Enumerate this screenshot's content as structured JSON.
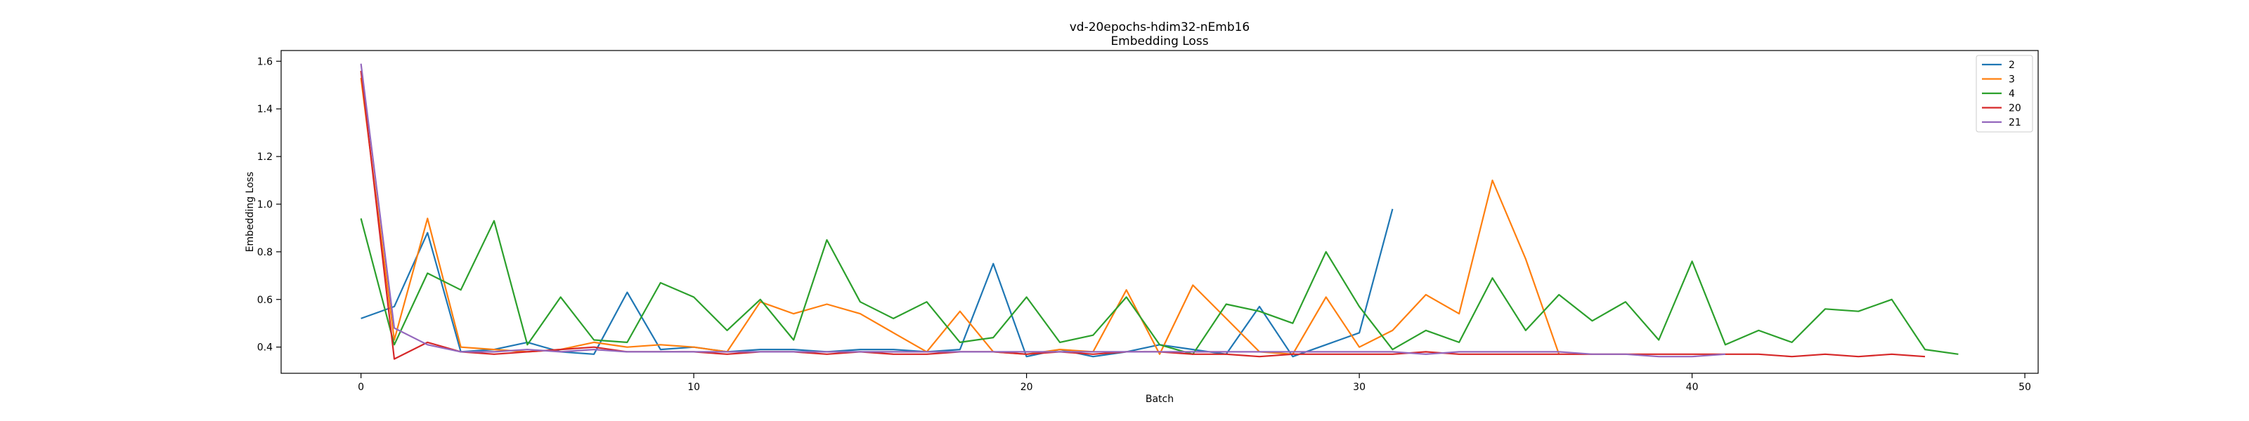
{
  "chart_data": {
    "type": "line",
    "title": "vd-20epochs-hdim32-nEmb16",
    "subtitle": "Embedding Loss",
    "xlabel": "Batch",
    "ylabel": "Embedding Loss",
    "xlim": [
      -2.4,
      50.4
    ],
    "ylim": [
      0.29,
      1.645
    ],
    "xticks": [
      0,
      10,
      20,
      30,
      40,
      50
    ],
    "yticks": [
      0.4,
      0.6,
      0.8,
      1.0,
      1.2,
      1.4,
      1.6
    ],
    "grid": false,
    "legend_position": "top-right",
    "series": [
      {
        "name": "2",
        "color": "#1f77b4",
        "x": [
          0,
          1,
          2,
          3,
          4,
          5,
          6,
          7,
          8,
          9,
          10,
          11,
          12,
          13,
          14,
          15,
          16,
          17,
          18,
          19,
          20,
          21,
          22,
          23,
          24,
          25,
          26,
          27,
          28,
          29,
          30,
          31
        ],
        "y": [
          0.52,
          0.57,
          0.88,
          0.38,
          0.39,
          0.42,
          0.38,
          0.37,
          0.63,
          0.39,
          0.4,
          0.38,
          0.39,
          0.39,
          0.38,
          0.39,
          0.39,
          0.38,
          0.39,
          0.75,
          0.36,
          0.39,
          0.36,
          0.38,
          0.41,
          0.39,
          0.37,
          0.57,
          0.36,
          0.41,
          0.46,
          0.98
        ]
      },
      {
        "name": "3",
        "color": "#ff7f0e",
        "x": [
          0,
          1,
          2,
          3,
          4,
          5,
          6,
          7,
          8,
          9,
          10,
          11,
          12,
          13,
          14,
          15,
          16,
          17,
          18,
          19,
          20,
          21,
          22,
          23,
          24,
          25,
          26,
          27,
          28,
          29,
          30,
          31,
          32,
          33,
          34,
          35,
          36
        ],
        "y": [
          1.53,
          0.43,
          0.94,
          0.4,
          0.39,
          0.38,
          0.39,
          0.42,
          0.4,
          0.41,
          0.4,
          0.38,
          0.59,
          0.54,
          0.58,
          0.54,
          0.46,
          0.38,
          0.55,
          0.38,
          0.37,
          0.39,
          0.38,
          0.64,
          0.37,
          0.66,
          0.52,
          0.38,
          0.37,
          0.61,
          0.4,
          0.47,
          0.62,
          0.54,
          1.1,
          0.77,
          0.37
        ]
      },
      {
        "name": "4",
        "color": "#2ca02c",
        "x": [
          0,
          1,
          2,
          3,
          4,
          5,
          6,
          7,
          8,
          9,
          10,
          11,
          12,
          13,
          14,
          15,
          16,
          17,
          18,
          19,
          20,
          21,
          22,
          23,
          24,
          25,
          26,
          27,
          28,
          29,
          30,
          31,
          32,
          33,
          34,
          35,
          36,
          37,
          38,
          39,
          40,
          41,
          42,
          43,
          44,
          45,
          46,
          47,
          48
        ],
        "y": [
          0.94,
          0.41,
          0.71,
          0.64,
          0.93,
          0.41,
          0.61,
          0.43,
          0.42,
          0.67,
          0.61,
          0.47,
          0.6,
          0.43,
          0.85,
          0.59,
          0.52,
          0.59,
          0.42,
          0.44,
          0.61,
          0.42,
          0.45,
          0.61,
          0.41,
          0.37,
          0.58,
          0.55,
          0.5,
          0.8,
          0.57,
          0.39,
          0.47,
          0.42,
          0.69,
          0.47,
          0.62,
          0.51,
          0.59,
          0.43,
          0.76,
          0.41,
          0.47,
          0.42,
          0.56,
          0.55,
          0.6,
          0.39,
          0.37
        ]
      },
      {
        "name": "20",
        "color": "#d62728",
        "x": [
          0,
          1,
          2,
          3,
          4,
          5,
          6,
          7,
          8,
          9,
          10,
          11,
          12,
          13,
          14,
          15,
          16,
          17,
          18,
          19,
          20,
          21,
          22,
          23,
          24,
          25,
          26,
          27,
          28,
          29,
          30,
          31,
          32,
          33,
          34,
          35,
          36,
          37,
          38,
          39,
          40,
          41,
          42,
          43,
          44,
          45,
          46,
          47
        ],
        "y": [
          1.56,
          0.35,
          0.42,
          0.38,
          0.37,
          0.38,
          0.39,
          0.4,
          0.38,
          0.38,
          0.38,
          0.37,
          0.38,
          0.38,
          0.37,
          0.38,
          0.37,
          0.37,
          0.38,
          0.38,
          0.37,
          0.38,
          0.37,
          0.38,
          0.38,
          0.37,
          0.37,
          0.36,
          0.37,
          0.37,
          0.37,
          0.37,
          0.38,
          0.37,
          0.37,
          0.37,
          0.37,
          0.37,
          0.37,
          0.37,
          0.37,
          0.37,
          0.37,
          0.36,
          0.37,
          0.36,
          0.37,
          0.36
        ]
      },
      {
        "name": "21",
        "color": "#9467bd",
        "x": [
          0,
          1,
          2,
          3,
          4,
          5,
          6,
          7,
          8,
          9,
          10,
          11,
          12,
          13,
          14,
          15,
          16,
          17,
          18,
          19,
          20,
          21,
          22,
          23,
          24,
          25,
          26,
          27,
          28,
          29,
          30,
          31,
          32,
          33,
          34,
          35,
          36,
          37,
          38,
          39,
          40,
          41
        ],
        "y": [
          1.59,
          0.48,
          0.41,
          0.38,
          0.38,
          0.39,
          0.38,
          0.39,
          0.38,
          0.38,
          0.38,
          0.38,
          0.38,
          0.38,
          0.38,
          0.38,
          0.38,
          0.38,
          0.38,
          0.38,
          0.38,
          0.38,
          0.38,
          0.38,
          0.38,
          0.38,
          0.38,
          0.38,
          0.38,
          0.38,
          0.38,
          0.38,
          0.37,
          0.38,
          0.38,
          0.38,
          0.38,
          0.37,
          0.37,
          0.36,
          0.36,
          0.37
        ]
      }
    ]
  }
}
